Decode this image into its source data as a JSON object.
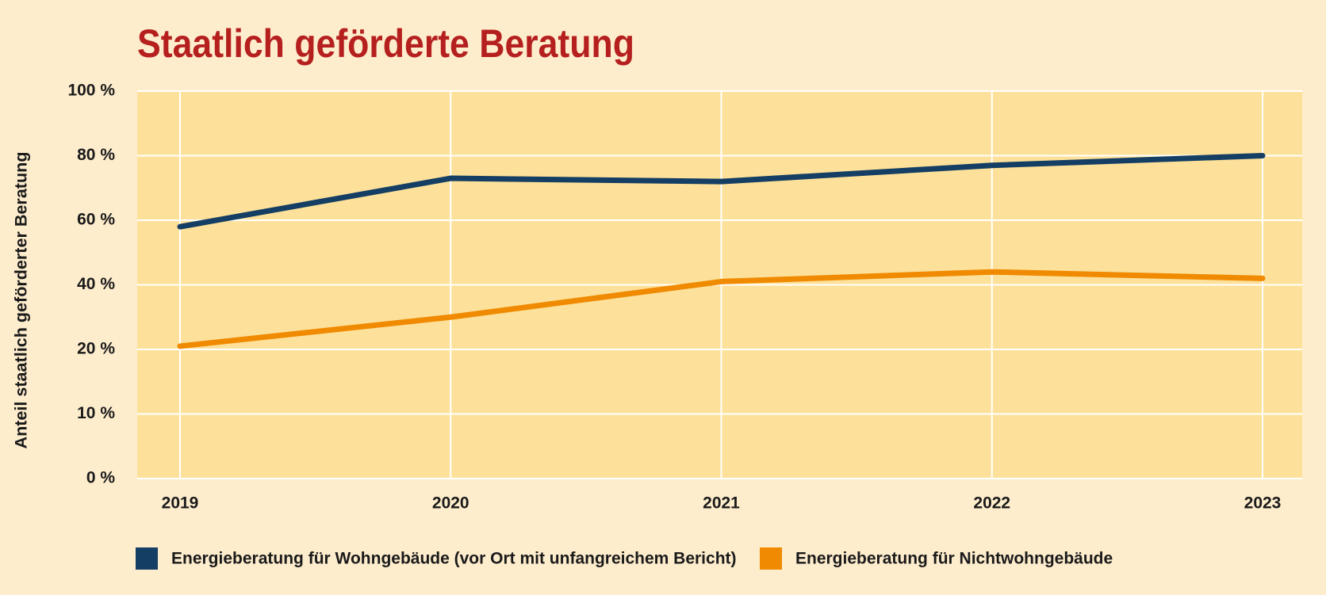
{
  "chart_data": {
    "type": "line",
    "title": "Staatlich geförderte Beratung",
    "ylabel": "Anteil staatlich geförderter Beratung",
    "categories": [
      "2019",
      "2020",
      "2021",
      "2022",
      "2023"
    ],
    "series": [
      {
        "name": "Energieberatung für Wohngebäude (vor Ort mit unfangreichem Bericht)",
        "color": "#143e63",
        "values": [
          58,
          73,
          72,
          77,
          80
        ]
      },
      {
        "name": "Energieberatung für Nichtwohngebäude",
        "color": "#f08a00",
        "values": [
          21,
          30,
          41,
          44,
          42
        ]
      }
    ],
    "ylim": [
      0,
      100
    ],
    "yticks": [
      {
        "value": 0,
        "label": "0 %"
      },
      {
        "value": 10,
        "label": "10 %"
      },
      {
        "value": 20,
        "label": "20 %"
      },
      {
        "value": 40,
        "label": "40 %"
      },
      {
        "value": 60,
        "label": "60 %"
      },
      {
        "value": 80,
        "label": "80 %"
      },
      {
        "value": 100,
        "label": "100 %"
      }
    ],
    "grid": true
  }
}
